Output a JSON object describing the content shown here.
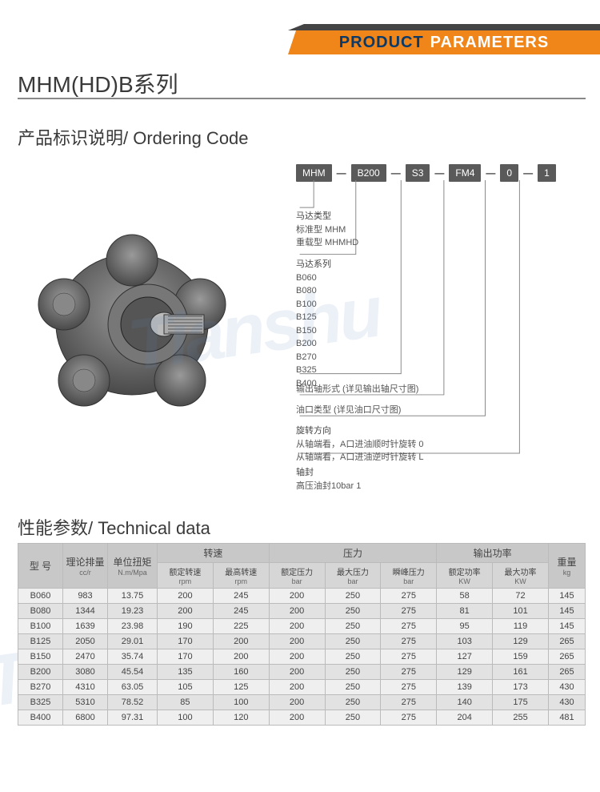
{
  "banner": {
    "word1": "PRODUCT",
    "word2": "PARAMETERS"
  },
  "title": "MHM(HD)B系列",
  "section1": "产品标识说明/ Ordering Code",
  "section2": "性能参数/ Technical data",
  "code_boxes": [
    "MHM",
    "B200",
    "S3",
    "FM4",
    "0",
    "1"
  ],
  "oc": {
    "b1": {
      "head": "马达类型",
      "l1": "标准型   MHM",
      "l2": "重载型   MHMHD"
    },
    "b2": {
      "head": "马达系列",
      "items": [
        "B060",
        "B080",
        "B100",
        "B125",
        "B150",
        "B200",
        "B270",
        "B325",
        "B400"
      ]
    },
    "b3": "输出轴形式 (详见输出轴尺寸图)",
    "b4": "油口类型 (详见油口尺寸图)",
    "b5": {
      "head": "旋转方向",
      "l1": "从轴端看，A口进油顺时针旋转   0",
      "l2": "从轴端看，A口进油逆时针旋转   L"
    },
    "b6": {
      "head": "轴封",
      "l1": "高压油封10bar   1"
    }
  },
  "table": {
    "top_headers": [
      {
        "cn": "型 号",
        "en": ""
      },
      {
        "cn": "理论排量",
        "en": "cc/r"
      },
      {
        "cn": "单位扭矩",
        "en": "N.m/Mpa"
      },
      {
        "cn": "转速",
        "en": ""
      },
      {
        "cn": "压力",
        "en": ""
      },
      {
        "cn": "输出功率",
        "en": ""
      },
      {
        "cn": "重量",
        "en": "kg"
      }
    ],
    "sub_headers": [
      {
        "cn": "额定转速",
        "en": "rpm"
      },
      {
        "cn": "最高转速",
        "en": "rpm"
      },
      {
        "cn": "额定压力",
        "en": "bar"
      },
      {
        "cn": "最大压力",
        "en": "bar"
      },
      {
        "cn": "瞬峰压力",
        "en": "bar"
      },
      {
        "cn": "额定功率",
        "en": "KW"
      },
      {
        "cn": "最大功率",
        "en": "KW"
      }
    ],
    "rows": [
      [
        "B060",
        "983",
        "13.75",
        "200",
        "245",
        "200",
        "250",
        "275",
        "58",
        "72",
        "145"
      ],
      [
        "B080",
        "1344",
        "19.23",
        "200",
        "245",
        "200",
        "250",
        "275",
        "81",
        "101",
        "145"
      ],
      [
        "B100",
        "1639",
        "23.98",
        "190",
        "225",
        "200",
        "250",
        "275",
        "95",
        "119",
        "145"
      ],
      [
        "B125",
        "2050",
        "29.01",
        "170",
        "200",
        "200",
        "250",
        "275",
        "103",
        "129",
        "265"
      ],
      [
        "B150",
        "2470",
        "35.74",
        "170",
        "200",
        "200",
        "250",
        "275",
        "127",
        "159",
        "265"
      ],
      [
        "B200",
        "3080",
        "45.54",
        "135",
        "160",
        "200",
        "250",
        "275",
        "129",
        "161",
        "265"
      ],
      [
        "B270",
        "4310",
        "63.05",
        "105",
        "125",
        "200",
        "250",
        "275",
        "139",
        "173",
        "430"
      ],
      [
        "B325",
        "5310",
        "78.52",
        "85",
        "100",
        "200",
        "250",
        "275",
        "140",
        "175",
        "430"
      ],
      [
        "B400",
        "6800",
        "97.31",
        "100",
        "120",
        "200",
        "250",
        "275",
        "204",
        "255",
        "481"
      ]
    ]
  }
}
